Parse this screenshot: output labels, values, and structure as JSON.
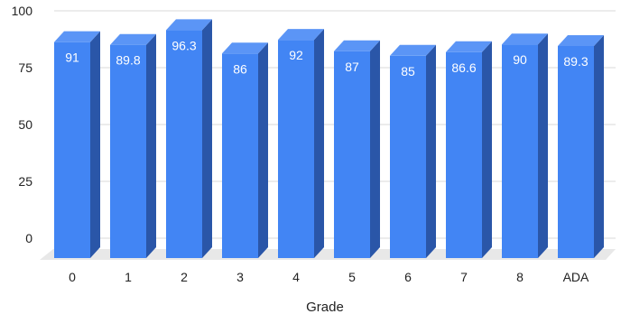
{
  "chart_data": {
    "type": "bar",
    "style": "3d",
    "categories": [
      "0",
      "1",
      "2",
      "3",
      "4",
      "5",
      "6",
      "7",
      "8",
      "ADA"
    ],
    "values": [
      91,
      89.8,
      96.3,
      86,
      92,
      87,
      85,
      86.6,
      90,
      89.3
    ],
    "data_labels": [
      "91",
      "89.8",
      "96.3",
      "86",
      "92",
      "87",
      "85",
      "86.6",
      "90",
      "89.3"
    ],
    "xlabel": "Grade",
    "ylabel": "",
    "ylim": [
      0,
      100
    ],
    "yticks": [
      "0",
      "25",
      "50",
      "75",
      "100"
    ],
    "grid": true,
    "legend": "none",
    "colors": {
      "bar_front": "#4285f4",
      "bar_side": "#2a56a8",
      "bar_top": "#5b95f6",
      "floor": "#e8e8e8",
      "grid": "#d9d9d9"
    }
  }
}
